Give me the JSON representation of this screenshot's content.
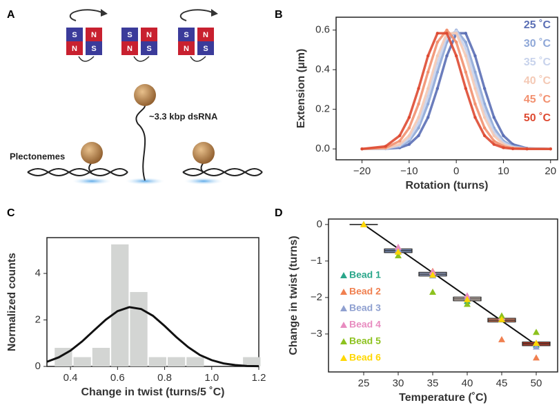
{
  "diagram": {
    "panel": "A",
    "plectonemes_label": "Plectonemes",
    "dsrna_label": "~3.3 kbp dsRNA",
    "magnets": [
      [
        "S",
        "N",
        "N",
        "S"
      ],
      [
        "S",
        "N",
        "N",
        "S"
      ],
      [
        "S",
        "N",
        "N",
        "S"
      ]
    ]
  },
  "chart_data": [
    {
      "panel": "B",
      "type": "line",
      "xlabel": "Rotation (turns)",
      "ylabel": "Extension (μm)",
      "x": [
        -20,
        -15,
        -12,
        -10,
        -8,
        -6,
        -4,
        -2,
        0,
        2,
        4,
        6,
        8,
        10,
        12,
        15,
        20
      ],
      "series": [
        {
          "name": "25 ˚C",
          "color": "#5b6fb5",
          "values": [
            0,
            0.001,
            0.006,
            0.023,
            0.067,
            0.159,
            0.305,
            0.47,
            0.584,
            0.584,
            0.47,
            0.305,
            0.159,
            0.067,
            0.023,
            0.003,
            0
          ]
        },
        {
          "name": "30 ˚C",
          "color": "#8fa8d8",
          "values": [
            0,
            0.001,
            0.013,
            0.04,
            0.106,
            0.227,
            0.388,
            0.539,
            0.6,
            0.539,
            0.388,
            0.227,
            0.106,
            0.04,
            0.013,
            0.001,
            0
          ]
        },
        {
          "name": "35 ˚C",
          "color": "#c8d3ec",
          "values": [
            0,
            0.002,
            0.017,
            0.052,
            0.131,
            0.265,
            0.431,
            0.565,
            0.596,
            0.508,
            0.347,
            0.192,
            0.085,
            0.031,
            0.009,
            0.001,
            0
          ]
        },
        {
          "name": "40 ˚C",
          "color": "#f4c9b5",
          "values": [
            0,
            0.003,
            0.023,
            0.067,
            0.159,
            0.305,
            0.47,
            0.584,
            0.584,
            0.47,
            0.305,
            0.159,
            0.067,
            0.023,
            0.006,
            0.001,
            0
          ]
        },
        {
          "name": "45 ˚C",
          "color": "#f2906f",
          "values": [
            0,
            0.006,
            0.04,
            0.106,
            0.227,
            0.388,
            0.539,
            0.6,
            0.539,
            0.388,
            0.227,
            0.106,
            0.04,
            0.013,
            0.003,
            0,
            0
          ]
        },
        {
          "name": "50 ˚C",
          "color": "#de4a32",
          "values": [
            0,
            0.013,
            0.067,
            0.159,
            0.305,
            0.47,
            0.584,
            0.584,
            0.47,
            0.305,
            0.159,
            0.067,
            0.023,
            0.006,
            0.001,
            0,
            0
          ]
        }
      ],
      "xlim": [
        -25.5,
        21.5
      ],
      "ylim": [
        -0.055,
        0.665
      ],
      "xticks": [
        {
          "value": -20,
          "label": "−20"
        },
        {
          "value": -10,
          "label": "−10"
        },
        0,
        10,
        20
      ],
      "yticks": [
        {
          "value": 0,
          "label": "0.0"
        },
        0.2,
        0.4,
        0.6
      ]
    },
    {
      "panel": "C",
      "type": "histogram",
      "xlabel": "Change in twist (turns/5 ˚C)",
      "ylabel": "Normalized counts",
      "bins": [
        0.33,
        0.41,
        0.49,
        0.57,
        0.65,
        0.73,
        0.81,
        0.89,
        0.97,
        1.05,
        1.13,
        1.21
      ],
      "values": [
        0.8,
        0.4,
        0.8,
        5.25,
        3.2,
        0.4,
        0.4,
        0.4,
        0,
        0,
        0.4
      ],
      "color": "#d3d5d3",
      "fit": {
        "color": "#111111",
        "x": [
          0.3,
          0.35,
          0.4,
          0.45,
          0.5,
          0.55,
          0.6,
          0.65,
          0.7,
          0.75,
          0.8,
          0.85,
          0.9,
          0.95,
          1.0,
          1.05,
          1.1,
          1.15,
          1.2
        ],
        "values": [
          0.2,
          0.39,
          0.68,
          1.08,
          1.55,
          2.01,
          2.38,
          2.55,
          2.47,
          2.18,
          1.74,
          1.26,
          0.83,
          0.49,
          0.27,
          0.13,
          0.06,
          0.02,
          0.01
        ]
      },
      "xlim": [
        0.3,
        1.2
      ],
      "ylim": [
        0,
        5.54
      ],
      "xticks": [
        0.4,
        0.6,
        0.8,
        {
          "value": 1,
          "label": "1.0"
        },
        1.2
      ],
      "yticks": [
        0,
        2,
        4
      ]
    },
    {
      "panel": "D",
      "type": "scatter",
      "xlabel": "Temperature (˚C)",
      "ylabel": "Change in twist (turns)",
      "x": [
        25,
        30,
        35,
        40,
        45,
        50
      ],
      "series": [
        {
          "name": "Bead 1",
          "color": "#2aa68a",
          "values": [
            0,
            -0.75,
            -1.4,
            -2.1,
            -2.6,
            -3.3
          ]
        },
        {
          "name": "Bead 2",
          "color": "#f08050",
          "values": [
            0,
            -0.7,
            -1.28,
            -2.0,
            -3.15,
            -3.65
          ]
        },
        {
          "name": "Bead 3",
          "color": "#8fa0d0",
          "values": [
            0,
            -0.68,
            -1.4,
            -2.0,
            -2.55,
            -3.35
          ]
        },
        {
          "name": "Bead 4",
          "color": "#e88cc0",
          "values": [
            0,
            -0.62,
            -1.3,
            -1.95,
            -2.55,
            -3.25
          ]
        },
        {
          "name": "Bead 5",
          "color": "#8dc21f",
          "values": [
            0,
            -0.85,
            -1.85,
            -2.18,
            -2.5,
            -2.95
          ]
        },
        {
          "name": "Bead 6",
          "color": "#ffd700",
          "values": [
            0,
            -0.75,
            -1.38,
            -2.05,
            -2.6,
            -3.25
          ]
        }
      ],
      "summary": {
        "values": [
          0,
          -0.72,
          -1.36,
          -2.04,
          -2.62,
          -3.27
        ],
        "errors": [
          0,
          0.05,
          0.05,
          0.05,
          0.05,
          0.05
        ],
        "colors": [
          "#ffffff",
          "#8fa8d8",
          "#aab8de",
          "#f4e0d6",
          "#f2906f",
          "#de4a32"
        ]
      },
      "fit": {
        "color": "#111111",
        "x": [
          25,
          50
        ],
        "values": [
          0,
          -3.3
        ]
      },
      "xlim": [
        19.9,
        53.1
      ],
      "ylim": [
        -4.04,
        0.15
      ],
      "xticks": [
        25,
        30,
        35,
        40,
        45,
        50
      ],
      "yticks": [
        0,
        {
          "value": -1,
          "label": "−1"
        },
        {
          "value": -2,
          "label": "−2"
        },
        {
          "value": -3,
          "label": "−3"
        }
      ]
    }
  ]
}
